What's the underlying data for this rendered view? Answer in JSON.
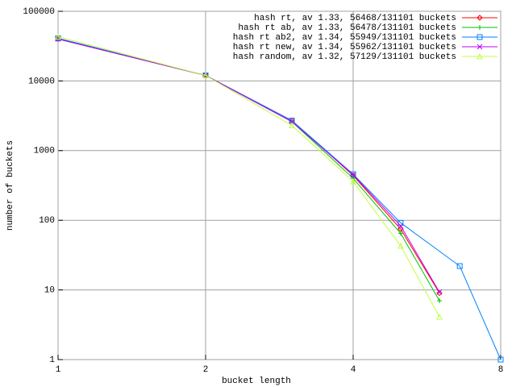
{
  "chart_data": {
    "type": "line",
    "xlabel": "bucket length",
    "ylabel": "number of buckets",
    "xscale": "log",
    "yscale": "log",
    "grid": true,
    "legend": "top-right",
    "xlim": [
      1,
      8
    ],
    "xticks": [
      1,
      2,
      4,
      8
    ],
    "ylim": [
      1,
      100000
    ],
    "yticks": [
      1,
      10,
      100,
      1000,
      10000,
      100000
    ],
    "series": [
      {
        "name": "hash rt, av 1.33, 56468/131101 buckets",
        "color": "#ff0000",
        "marker": "diamond",
        "x": [
          1,
          2,
          3,
          4,
          5,
          6
        ],
        "values": [
          40000,
          12000,
          2700,
          440,
          75,
          9
        ]
      },
      {
        "name": "hash rt ab, av 1.33, 56478/131101 buckets",
        "color": "#00c000",
        "marker": "plus",
        "x": [
          1,
          2,
          3,
          4,
          5,
          6
        ],
        "values": [
          40000,
          12000,
          2600,
          400,
          65,
          7
        ]
      },
      {
        "name": "hash rt ab2, av 1.34, 55949/131101 buckets",
        "color": "#0080ff",
        "marker": "square",
        "x": [
          1,
          2,
          3,
          4,
          5,
          6.6,
          8
        ],
        "values": [
          41000,
          12000,
          2700,
          460,
          92,
          22,
          1
        ]
      },
      {
        "name": "hash rt new, av 1.34, 55962/131101 buckets",
        "color": "#c000ff",
        "marker": "cross",
        "x": [
          1,
          2,
          3,
          4,
          5,
          6
        ],
        "values": [
          40000,
          12000,
          2600,
          450,
          83,
          9.3
        ]
      },
      {
        "name": "hash random, av 1.32, 57129/131101 buckets",
        "color": "#c0ff40",
        "marker": "triangle",
        "x": [
          1,
          2,
          3,
          4,
          5,
          6
        ],
        "values": [
          43000,
          12000,
          2300,
          360,
          43,
          4.1
        ]
      }
    ]
  }
}
